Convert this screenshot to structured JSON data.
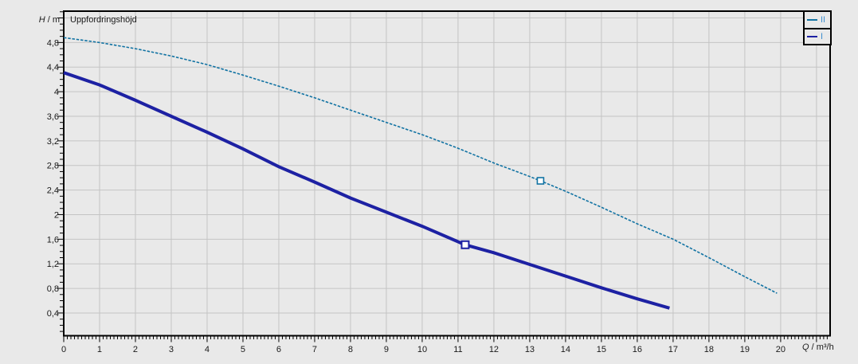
{
  "page": {
    "background": "#e9e9e9"
  },
  "chart_data": {
    "type": "line",
    "title": "Uppfordringshöjd",
    "ylabel_var": "H",
    "ylabel_unit": " / m",
    "xlabel_var": "Q",
    "xlabel_unit": " / m³/h",
    "xlim": [
      0,
      21.38
    ],
    "ylim": [
      0.03,
      5.31
    ],
    "grid": true,
    "grid_color": "#c4c4c4",
    "axis_color": "#000000",
    "tick_label_color": "#1a1a1a",
    "x_tick_labels": [
      "0",
      "1",
      "2",
      "3",
      "4",
      "5",
      "6",
      "7",
      "8",
      "9",
      "10",
      "11",
      "12",
      "13",
      "14",
      "15",
      "16",
      "17",
      "18",
      "19",
      "20"
    ],
    "y_tick_labels": [
      "0,4",
      "0,8",
      "1,2",
      "1,6",
      "2",
      "2,4",
      "2,8",
      "3,2",
      "3,6",
      "4",
      "4,4",
      "4,8"
    ],
    "legend_position": "top-right",
    "legend_label_color": "#3e8fd0",
    "legend": [
      {
        "label": "II",
        "color": "#1273a3"
      },
      {
        "label": "I",
        "color": "#1d21a3"
      }
    ],
    "series": [
      {
        "name": "II",
        "color": "#1273a3",
        "width": 1.6,
        "dashed": true,
        "points": [
          [
            0,
            4.88
          ],
          [
            1,
            4.8
          ],
          [
            2,
            4.7
          ],
          [
            3,
            4.58
          ],
          [
            4,
            4.44
          ],
          [
            5,
            4.27
          ],
          [
            6,
            4.09
          ],
          [
            7,
            3.9
          ],
          [
            8,
            3.7
          ],
          [
            9,
            3.5
          ],
          [
            10,
            3.3
          ],
          [
            11,
            3.08
          ],
          [
            12,
            2.84
          ],
          [
            13,
            2.62
          ],
          [
            13.3,
            2.55
          ],
          [
            14,
            2.38
          ],
          [
            15,
            2.12
          ],
          [
            16,
            1.85
          ],
          [
            17,
            1.6
          ],
          [
            18,
            1.3
          ],
          [
            19,
            0.99
          ],
          [
            19.9,
            0.72
          ]
        ],
        "marker": {
          "q": 13.3,
          "h": 2.55,
          "size": 8,
          "stroke_width": 1.6
        }
      },
      {
        "name": "I",
        "color": "#1d21a3",
        "width": 4,
        "dashed": false,
        "points": [
          [
            0,
            4.31
          ],
          [
            1,
            4.11
          ],
          [
            2,
            3.86
          ],
          [
            3,
            3.6
          ],
          [
            4,
            3.34
          ],
          [
            5,
            3.07
          ],
          [
            6,
            2.78
          ],
          [
            7,
            2.53
          ],
          [
            8,
            2.27
          ],
          [
            9,
            2.04
          ],
          [
            10,
            1.81
          ],
          [
            11.2,
            1.51
          ],
          [
            12,
            1.38
          ],
          [
            13,
            1.19
          ],
          [
            14,
            1.0
          ],
          [
            15,
            0.81
          ],
          [
            16,
            0.63
          ],
          [
            16.9,
            0.48
          ]
        ],
        "marker": {
          "q": 11.2,
          "h": 1.51,
          "size": 9,
          "stroke_width": 2
        }
      }
    ]
  }
}
